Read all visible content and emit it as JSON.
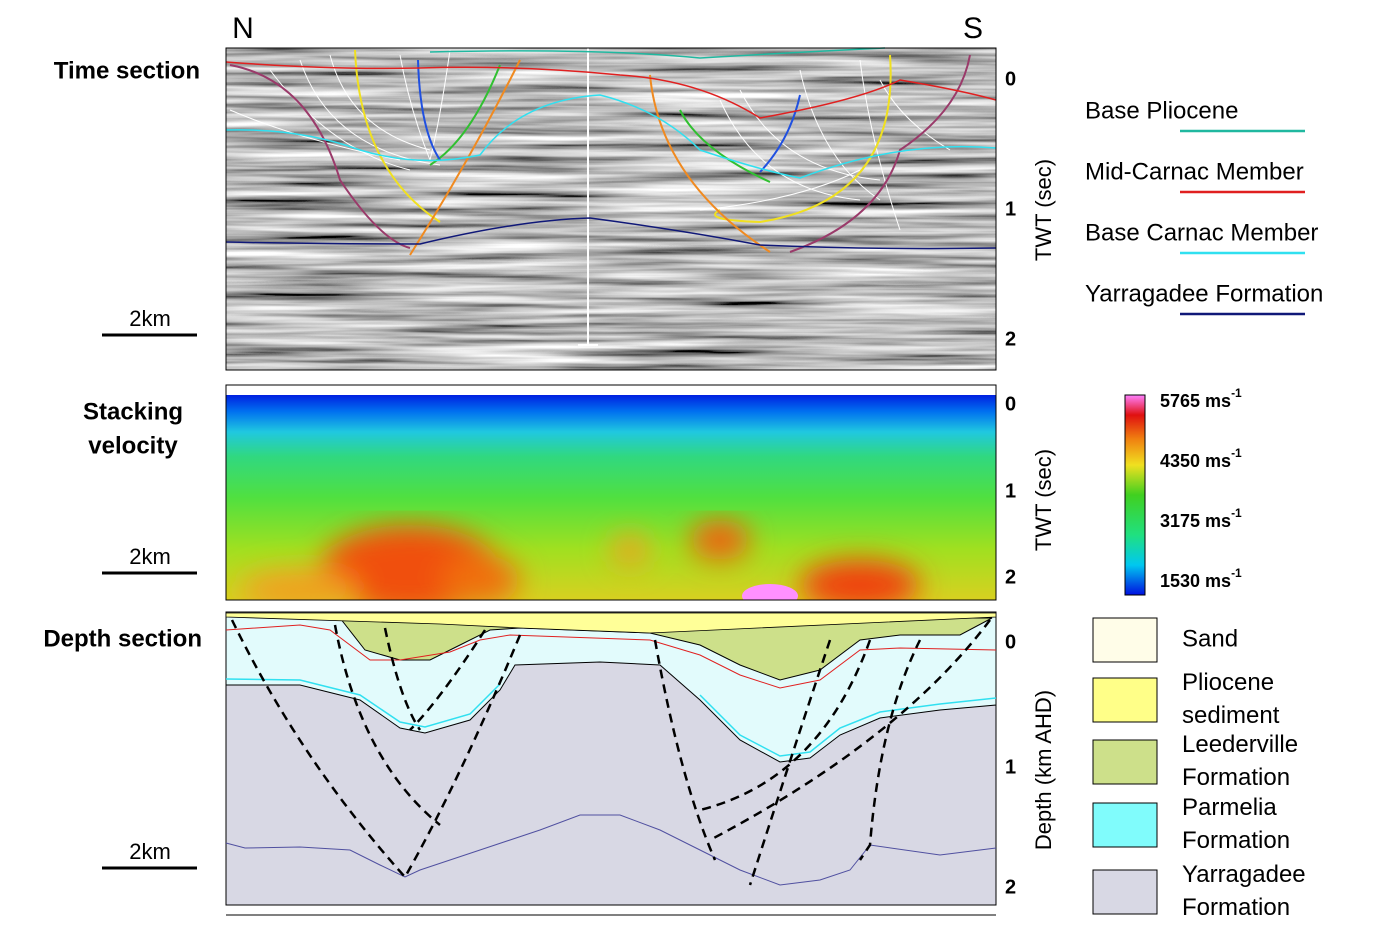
{
  "compass": {
    "north": "N",
    "south": "S"
  },
  "panels": [
    {
      "label": [
        "Time section"
      ],
      "scale_bar": "2km",
      "axis_title": "TWT (sec)",
      "ticks": [
        "0",
        "1",
        "2"
      ]
    },
    {
      "label": [
        "Stacking",
        "velocity"
      ],
      "scale_bar": "2km",
      "axis_title": "TWT (sec)",
      "ticks": [
        "0",
        "1",
        "2"
      ]
    },
    {
      "label": [
        "Depth section"
      ],
      "scale_bar": "2km",
      "axis_title": "Depth (km AHD)",
      "ticks": [
        "0",
        "1",
        "2"
      ]
    }
  ],
  "horizon_legend": [
    {
      "name": "Base Pliocene",
      "color": "#20b8a0"
    },
    {
      "name": "Mid-Carnac Member",
      "color": "#e02020"
    },
    {
      "name": "Base Carnac Member",
      "color": "#30e0f0"
    },
    {
      "name": "Yarragadee Formation",
      "color": "#101878"
    }
  ],
  "velocity_scale": [
    {
      "label": "5765 ms",
      "sup": "-1"
    },
    {
      "label": "4350 ms",
      "sup": "-1"
    },
    {
      "label": "3175 ms",
      "sup": "-1"
    },
    {
      "label": "1530 ms",
      "sup": "-1"
    }
  ],
  "unit_legend": [
    {
      "name": [
        "Sand"
      ],
      "color": "#fffde8"
    },
    {
      "name": [
        "Pliocene",
        "sediment"
      ],
      "color": "#ffff88"
    },
    {
      "name": [
        "Leederville",
        "Formation"
      ],
      "color": "#cde08a"
    },
    {
      "name": [
        "Parmelia",
        "Formation"
      ],
      "color": "#80fcfc"
    },
    {
      "name": [
        "Yarragadee",
        "Formation"
      ],
      "color": "#d8d8e4"
    }
  ]
}
